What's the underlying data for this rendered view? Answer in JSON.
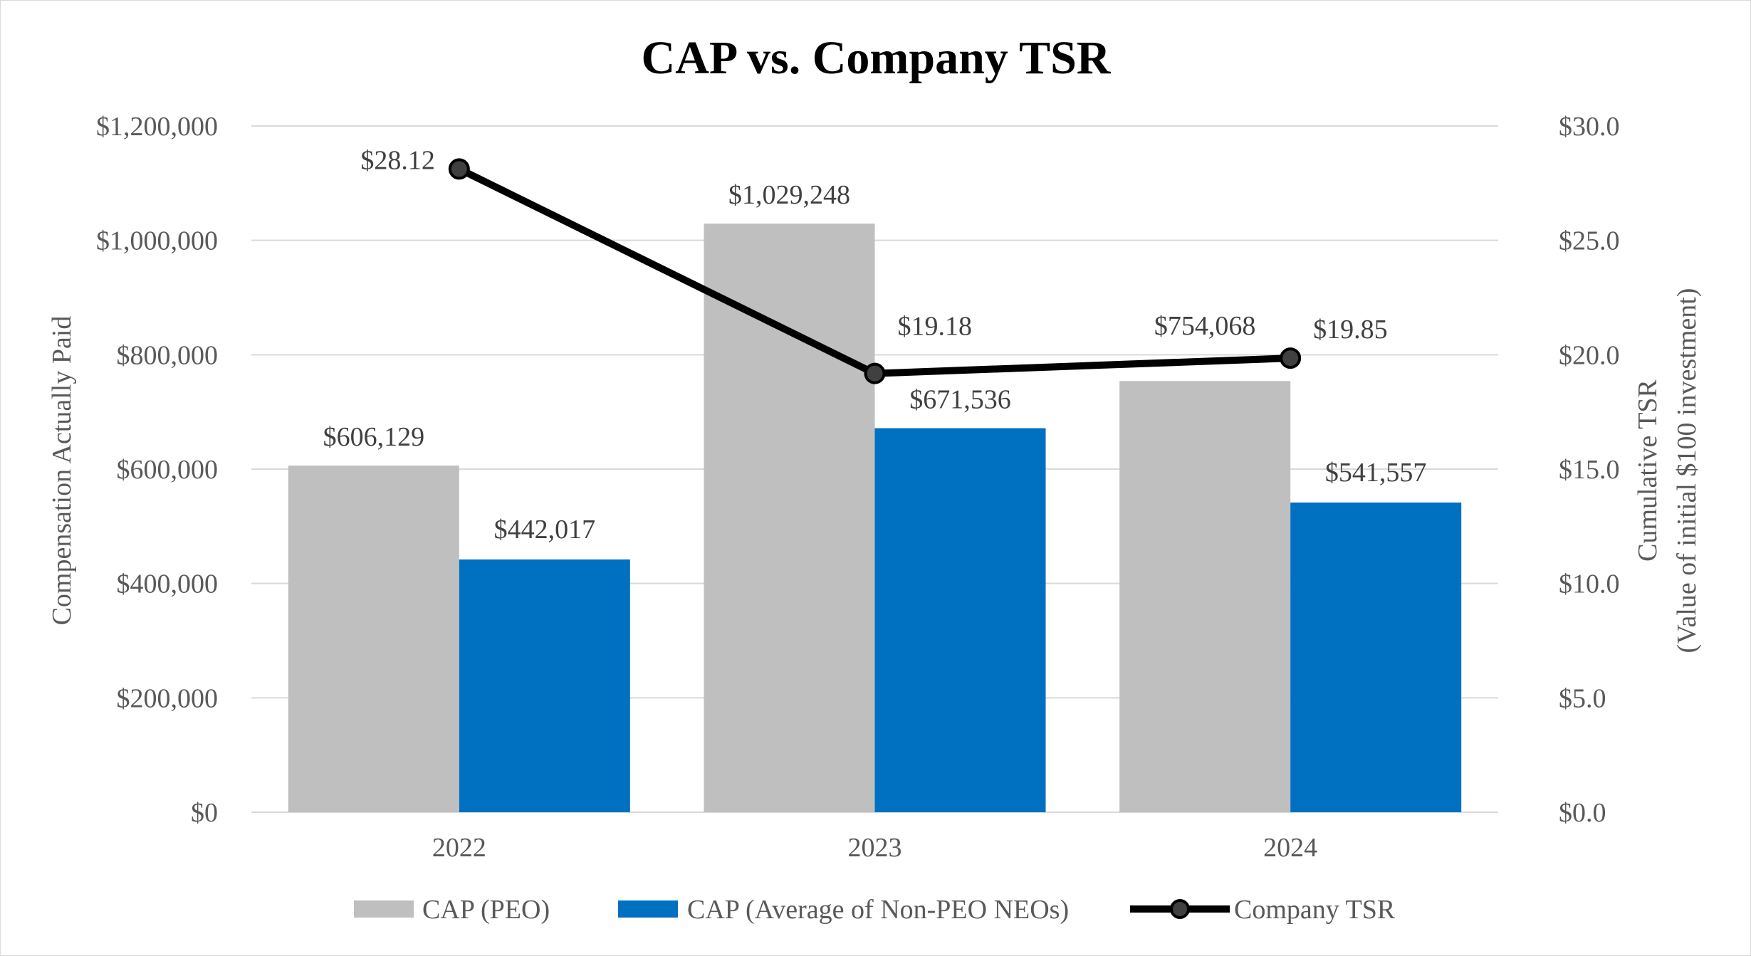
{
  "chart_data": {
    "type": "bar",
    "title": "CAP vs. Company TSR",
    "categories": [
      "2022",
      "2023",
      "2024"
    ],
    "ylabel": "Compensation  Actually Paid",
    "y2label_line1": "Cumulative  TSR",
    "y2label_line2": "(Value of initial $100 investment)",
    "ylim": [
      0,
      1200000
    ],
    "y2lim": [
      0,
      30
    ],
    "yticks": [
      "$0",
      "$200,000",
      "$400,000",
      "$600,000",
      "$800,000",
      "$1,000,000",
      "$1,200,000"
    ],
    "y2ticks": [
      "$0.0",
      "$5.0",
      "$10.0",
      "$15.0",
      "$20.0",
      "$25.0",
      "$30.0"
    ],
    "grid": true,
    "legend_position": "bottom",
    "series": [
      {
        "name": "CAP (PEO)",
        "kind": "bar",
        "axis": "left",
        "color": "#bfbfbf",
        "values": [
          606129,
          1029248,
          754068
        ],
        "labels": [
          "$606,129",
          "$1,029,248",
          "$754,068"
        ]
      },
      {
        "name": "CAP (Average of Non-PEO NEOs)",
        "kind": "bar",
        "axis": "left",
        "color": "#0070c0",
        "values": [
          442017,
          671536,
          541557
        ],
        "labels": [
          "$442,017",
          "$671,536",
          "$541,557"
        ]
      },
      {
        "name": "Company TSR",
        "kind": "line",
        "axis": "right",
        "color": "#000000",
        "values": [
          28.12,
          19.18,
          19.85
        ],
        "labels": [
          "$28.12",
          "$19.18",
          "$19.85"
        ]
      }
    ]
  }
}
